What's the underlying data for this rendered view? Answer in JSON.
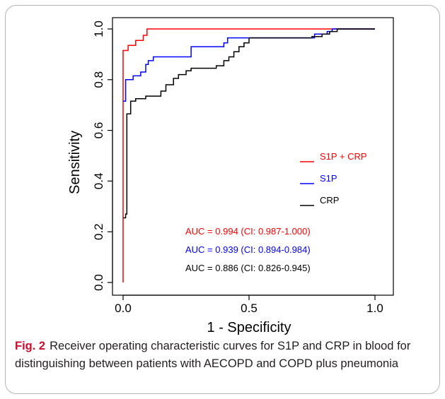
{
  "chart_data": {
    "type": "line",
    "title": "",
    "xlabel": "1 - Specificity",
    "ylabel": "Sensitivity",
    "xlim": [
      0,
      1
    ],
    "ylim": [
      0,
      1
    ],
    "xticks": [
      "0.0",
      "0.5",
      "1.0"
    ],
    "yticks": [
      "0.0",
      "0.2",
      "0.4",
      "0.6",
      "0.8",
      "1.0"
    ],
    "grid": false,
    "legend_position": "right",
    "series": [
      {
        "name": "S1P + CRP",
        "color": "#ff0000",
        "points": [
          [
            0,
            0
          ],
          [
            0,
            0.915
          ],
          [
            0.02,
            0.915
          ],
          [
            0.02,
            0.935
          ],
          [
            0.05,
            0.935
          ],
          [
            0.05,
            0.955
          ],
          [
            0.08,
            0.955
          ],
          [
            0.08,
            0.975
          ],
          [
            0.095,
            0.975
          ],
          [
            0.095,
            1
          ],
          [
            1,
            1
          ]
        ]
      },
      {
        "name": "S1P",
        "color": "#0000ff",
        "points": [
          [
            0,
            0.715
          ],
          [
            0.01,
            0.715
          ],
          [
            0.01,
            0.8
          ],
          [
            0.04,
            0.8
          ],
          [
            0.04,
            0.815
          ],
          [
            0.07,
            0.815
          ],
          [
            0.07,
            0.83
          ],
          [
            0.09,
            0.83
          ],
          [
            0.09,
            0.86
          ],
          [
            0.1,
            0.86
          ],
          [
            0.1,
            0.875
          ],
          [
            0.12,
            0.875
          ],
          [
            0.12,
            0.89
          ],
          [
            0.27,
            0.89
          ],
          [
            0.27,
            0.93
          ],
          [
            0.4,
            0.93
          ],
          [
            0.4,
            0.945
          ],
          [
            0.415,
            0.945
          ],
          [
            0.415,
            0.965
          ],
          [
            0.76,
            0.965
          ],
          [
            0.76,
            0.98
          ],
          [
            0.81,
            0.98
          ],
          [
            0.81,
            0.99
          ],
          [
            0.83,
            0.99
          ],
          [
            0.83,
            1
          ],
          [
            1,
            1
          ]
        ]
      },
      {
        "name": "CRP",
        "color": "#000000",
        "points": [
          [
            0,
            0.255
          ],
          [
            0.01,
            0.255
          ],
          [
            0.01,
            0.27
          ],
          [
            0.015,
            0.27
          ],
          [
            0.015,
            0.665
          ],
          [
            0.03,
            0.665
          ],
          [
            0.03,
            0.715
          ],
          [
            0.05,
            0.715
          ],
          [
            0.05,
            0.725
          ],
          [
            0.09,
            0.725
          ],
          [
            0.09,
            0.735
          ],
          [
            0.15,
            0.735
          ],
          [
            0.15,
            0.755
          ],
          [
            0.17,
            0.755
          ],
          [
            0.17,
            0.78
          ],
          [
            0.2,
            0.78
          ],
          [
            0.2,
            0.805
          ],
          [
            0.22,
            0.805
          ],
          [
            0.22,
            0.82
          ],
          [
            0.25,
            0.82
          ],
          [
            0.25,
            0.835
          ],
          [
            0.27,
            0.835
          ],
          [
            0.27,
            0.845
          ],
          [
            0.37,
            0.845
          ],
          [
            0.37,
            0.855
          ],
          [
            0.4,
            0.855
          ],
          [
            0.4,
            0.875
          ],
          [
            0.42,
            0.875
          ],
          [
            0.42,
            0.89
          ],
          [
            0.44,
            0.89
          ],
          [
            0.44,
            0.91
          ],
          [
            0.46,
            0.91
          ],
          [
            0.46,
            0.93
          ],
          [
            0.48,
            0.93
          ],
          [
            0.48,
            0.945
          ],
          [
            0.5,
            0.945
          ],
          [
            0.5,
            0.965
          ],
          [
            0.75,
            0.965
          ],
          [
            0.75,
            0.97
          ],
          [
            0.79,
            0.97
          ],
          [
            0.79,
            0.98
          ],
          [
            0.82,
            0.98
          ],
          [
            0.82,
            0.99
          ],
          [
            0.85,
            0.99
          ],
          [
            0.85,
            1
          ],
          [
            1,
            1
          ]
        ]
      }
    ],
    "annotations": [
      {
        "text": "AUC = 0.994 (CI: 0.987-1.000)",
        "color": "#ff0000"
      },
      {
        "text": "AUC = 0.939 (CI: 0.894-0.984)",
        "color": "#0000ff"
      },
      {
        "text": "AUC = 0.886 (CI: 0.826-0.945)",
        "color": "#000000"
      }
    ]
  },
  "caption": {
    "label": "Fig. 2",
    "text": "Receiver operating characteristic curves for S1P and CRP in blood for distinguishing between patients with AECOPD and COPD plus pneumonia"
  }
}
